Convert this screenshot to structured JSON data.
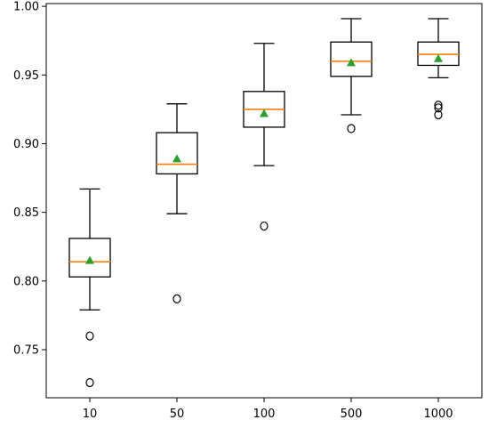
{
  "chart_data": {
    "type": "box",
    "categories": [
      "10",
      "50",
      "100",
      "500",
      "1000"
    ],
    "ylim": [
      0.715,
      1.002
    ],
    "yticks": [
      0.75,
      0.8,
      0.85,
      0.9,
      0.95,
      1.0
    ],
    "ytick_labels": [
      "0.75",
      "0.80",
      "0.85",
      "0.90",
      "0.95",
      "1.00"
    ],
    "grid": false,
    "boxes": [
      {
        "category": "10",
        "whisker_low": 0.779,
        "q1": 0.803,
        "median": 0.814,
        "q3": 0.831,
        "whisker_high": 0.867,
        "mean": 0.815,
        "outliers": [
          0.76,
          0.726
        ]
      },
      {
        "category": "50",
        "whisker_low": 0.849,
        "q1": 0.878,
        "median": 0.885,
        "q3": 0.908,
        "whisker_high": 0.929,
        "mean": 0.889,
        "outliers": [
          0.787
        ]
      },
      {
        "category": "100",
        "whisker_low": 0.884,
        "q1": 0.912,
        "median": 0.925,
        "q3": 0.938,
        "whisker_high": 0.973,
        "mean": 0.922,
        "outliers": [
          0.84
        ]
      },
      {
        "category": "500",
        "whisker_low": 0.921,
        "q1": 0.949,
        "median": 0.96,
        "q3": 0.974,
        "whisker_high": 0.991,
        "mean": 0.959,
        "outliers": [
          0.911
        ]
      },
      {
        "category": "1000",
        "whisker_low": 0.948,
        "q1": 0.957,
        "median": 0.965,
        "q3": 0.974,
        "whisker_high": 0.991,
        "mean": 0.962,
        "outliers": [
          0.928,
          0.926,
          0.921
        ]
      }
    ],
    "colors": {
      "box": "#000000",
      "median": "#ff7f0e",
      "mean": "#2ca02c",
      "outlier": "#000000"
    }
  }
}
